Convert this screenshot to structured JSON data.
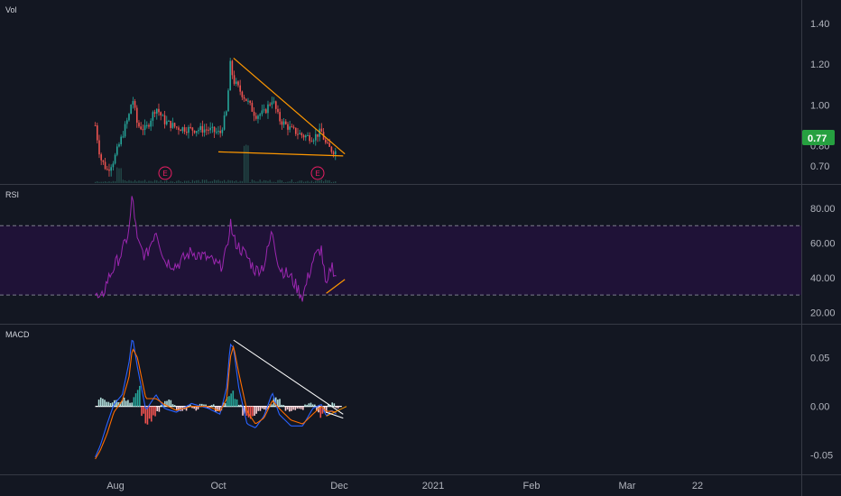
{
  "panes": {
    "price_label": "Vol",
    "rsi_label": "RSI",
    "macd_label": "MACD"
  },
  "last_price": "0.77",
  "earnings_marker": "E",
  "colors": {
    "background": "#131722",
    "separator": "#363a45",
    "candle_up": "#26a69a",
    "candle_down": "#ef5350",
    "trendline": "#ff9800",
    "rsi_line": "#9c27b0",
    "rsi_band": "#1f1237",
    "rsi_band_edge": "#a7a9b7",
    "macd_line": "#2962ff",
    "signal_line": "#ff6d00",
    "hist_pos": "#b2dfdb",
    "hist_pos_strong": "#26a69a",
    "hist_neg": "#ffcdd2",
    "hist_neg_strong": "#ef5350",
    "white_trend": "#ffffff",
    "last_price_bg": "#26a040",
    "earnings": "#e91e63"
  },
  "time_axis": {
    "labels": [
      "Aug",
      "Oct",
      "Dec",
      "2021",
      "Feb",
      "Mar",
      "22"
    ]
  },
  "chart_data": [
    {
      "type": "line",
      "pane": "price",
      "y_ticks": [
        "0.70",
        "0.80",
        "1.00",
        "1.20",
        "1.40"
      ],
      "ylim": [
        0.63,
        1.48
      ],
      "price_path": [
        [
          "Jul 20",
          0.9
        ],
        [
          "Jul 23",
          0.74
        ],
        [
          "Jul 27",
          0.68
        ],
        [
          "Jul 31",
          0.73
        ],
        [
          "Aug 5",
          0.85
        ],
        [
          "Aug 9",
          0.95
        ],
        [
          "Aug 11",
          1.04
        ],
        [
          "Aug 14",
          0.9
        ],
        [
          "Aug 19",
          0.88
        ],
        [
          "Aug 25",
          0.99
        ],
        [
          "Aug 30",
          0.92
        ],
        [
          "Sep 6",
          0.89
        ],
        [
          "Sep 15",
          0.88
        ],
        [
          "Sep 25",
          0.88
        ],
        [
          "Oct 2",
          0.86
        ],
        [
          "Oct 6",
          0.97
        ],
        [
          "Oct 8",
          1.2
        ],
        [
          "Oct 10",
          1.12
        ],
        [
          "Oct 13",
          1.08
        ],
        [
          "Oct 18",
          1.02
        ],
        [
          "Oct 23",
          0.95
        ],
        [
          "Oct 28",
          0.96
        ],
        [
          "Nov 2",
          1.03
        ],
        [
          "Nov 6",
          0.93
        ],
        [
          "Nov 13",
          0.88
        ],
        [
          "Nov 20",
          0.85
        ],
        [
          "Nov 26",
          0.84
        ],
        [
          "Dec 1",
          0.87
        ],
        [
          "Dec 4",
          0.8
        ],
        [
          "Dec 7",
          0.78
        ],
        [
          "Dec 10",
          0.77
        ]
      ],
      "trendlines": [
        {
          "from": [
            "Oct 10",
            1.23
          ],
          "to": [
            "Dec 15",
            0.76
          ]
        },
        {
          "from": [
            "Oct 1",
            0.77
          ],
          "to": [
            "Dec 14",
            0.75
          ]
        }
      ]
    },
    {
      "type": "line",
      "pane": "rsi",
      "y_ticks": [
        "20.00",
        "40.00",
        "60.00",
        "80.00"
      ],
      "ylim": [
        15,
        93
      ],
      "band": [
        30,
        70
      ],
      "series": [
        {
          "values": [
            [
              "Jul 20",
              30
            ],
            [
              "Jul 23",
              26
            ],
            [
              "Jul 27",
              38
            ],
            [
              "Jul 31",
              46
            ],
            [
              "Aug 5",
              55
            ],
            [
              "Aug 9",
              67
            ],
            [
              "Aug 11",
              88
            ],
            [
              "Aug 14",
              60
            ],
            [
              "Aug 19",
              52
            ],
            [
              "Aug 25",
              68
            ],
            [
              "Aug 30",
              50
            ],
            [
              "Sep 6",
              47
            ],
            [
              "Sep 15",
              55
            ],
            [
              "Sep 25",
              51
            ],
            [
              "Oct 2",
              46
            ],
            [
              "Oct 6",
              55
            ],
            [
              "Oct 8",
              73
            ],
            [
              "Oct 10",
              62
            ],
            [
              "Oct 13",
              58
            ],
            [
              "Oct 18",
              52
            ],
            [
              "Oct 23",
              44
            ],
            [
              "Oct 28",
              47
            ],
            [
              "Nov 2",
              67
            ],
            [
              "Nov 6",
              46
            ],
            [
              "Nov 13",
              40
            ],
            [
              "Nov 20",
              29
            ],
            [
              "Nov 26",
              50
            ],
            [
              "Dec 1",
              57
            ],
            [
              "Dec 4",
              32
            ],
            [
              "Dec 7",
              48
            ],
            [
              "Dec 10",
              40
            ]
          ]
        }
      ],
      "trendlines": [
        {
          "from": [
            "Dec 4",
            31
          ],
          "to": [
            "Dec 15",
            39
          ]
        }
      ]
    },
    {
      "type": "line",
      "pane": "macd",
      "y_ticks": [
        "-0.05",
        "0.00",
        "0.05"
      ],
      "ylim": [
        -0.066,
        0.082
      ],
      "series": [
        {
          "values": [
            [
              "Jul 20",
              -0.052
            ],
            [
              "Jul 23",
              -0.04
            ],
            [
              "Jul 27",
              -0.018
            ],
            [
              "Jul 31",
              0.002
            ],
            [
              "Aug 5",
              0.012
            ],
            [
              "Aug 9",
              0.045
            ],
            [
              "Aug 11",
              0.072
            ],
            [
              "Aug 14",
              0.04
            ],
            [
              "Aug 19",
              -0.004
            ],
            [
              "Aug 25",
              0.012
            ],
            [
              "Aug 30",
              -0.002
            ],
            [
              "Sep 6",
              -0.006
            ],
            [
              "Sep 15",
              0.003
            ],
            [
              "Sep 25",
              -0.002
            ],
            [
              "Oct 2",
              -0.008
            ],
            [
              "Oct 6",
              0.02
            ],
            [
              "Oct 8",
              0.064
            ],
            [
              "Oct 10",
              0.06
            ],
            [
              "Oct 13",
              0.02
            ],
            [
              "Oct 18",
              -0.018
            ],
            [
              "Oct 23",
              -0.022
            ],
            [
              "Oct 28",
              -0.01
            ],
            [
              "Nov 2",
              0.014
            ],
            [
              "Nov 6",
              -0.008
            ],
            [
              "Nov 13",
              -0.02
            ],
            [
              "Nov 20",
              -0.02
            ],
            [
              "Nov 26",
              -0.002
            ],
            [
              "Dec 1",
              0.002
            ],
            [
              "Dec 4",
              -0.01
            ],
            [
              "Dec 7",
              -0.004
            ],
            [
              "Dec 10",
              -0.008
            ]
          ]
        },
        {
          "values": [
            [
              "Jul 20",
              -0.054
            ],
            [
              "Jul 23",
              -0.045
            ],
            [
              "Jul 27",
              -0.028
            ],
            [
              "Jul 31",
              -0.006
            ],
            [
              "Aug 5",
              0.006
            ],
            [
              "Aug 9",
              0.03
            ],
            [
              "Aug 11",
              0.06
            ],
            [
              "Aug 14",
              0.05
            ],
            [
              "Aug 19",
              0.008
            ],
            [
              "Aug 25",
              0.008
            ],
            [
              "Aug 30",
              0.002
            ],
            [
              "Sep 6",
              -0.004
            ],
            [
              "Sep 15",
              0.0
            ],
            [
              "Sep 25",
              0.0
            ],
            [
              "Oct 2",
              -0.005
            ],
            [
              "Oct 6",
              0.008
            ],
            [
              "Oct 8",
              0.05
            ],
            [
              "Oct 10",
              0.062
            ],
            [
              "Oct 13",
              0.035
            ],
            [
              "Oct 18",
              -0.005
            ],
            [
              "Oct 23",
              -0.018
            ],
            [
              "Oct 28",
              -0.012
            ],
            [
              "Nov 2",
              0.006
            ],
            [
              "Nov 6",
              -0.002
            ],
            [
              "Nov 13",
              -0.014
            ],
            [
              "Nov 20",
              -0.018
            ],
            [
              "Nov 26",
              -0.008
            ],
            [
              "Dec 1",
              0.0
            ],
            [
              "Dec 4",
              -0.005
            ],
            [
              "Dec 7",
              -0.005
            ],
            [
              "Dec 10",
              -0.006
            ]
          ]
        }
      ],
      "histogram": [
        0.008,
        0.008,
        0.006,
        0.004,
        0.006,
        0.004,
        0.008,
        0.006,
        0.004,
        0.012,
        0.02,
        -0.01,
        -0.016,
        -0.014,
        -0.01,
        -0.006,
        0.002,
        0.006,
        0.006,
        0.002,
        -0.004,
        -0.006,
        -0.004,
        0.002,
        -0.002,
        -0.004,
        0.003,
        0.002,
        -0.002,
        0.002,
        -0.006,
        -0.004,
        0.004,
        0.012,
        0.016,
        0.01,
        0.002,
        -0.008,
        -0.012,
        -0.012,
        -0.008,
        -0.004,
        -0.003,
        -0.004,
        0.002,
        0.008,
        0.008,
        0.002,
        -0.004,
        -0.006,
        -0.004,
        -0.002,
        -0.004,
        0.002,
        0.004,
        0.002,
        -0.006,
        -0.01,
        -0.006,
        0.002,
        0.004,
        -0.002
      ],
      "trendlines": [
        {
          "color": "white",
          "from": [
            "Oct 10",
            0.068
          ],
          "to": [
            "Dec 14",
            -0.008
          ]
        },
        {
          "color": "orange",
          "from": [
            "Dec 4",
            -0.01
          ],
          "to": [
            "Dec 16",
            0.0
          ]
        },
        {
          "color": "white",
          "from": [
            "Dec 4",
            -0.006
          ],
          "to": [
            "Dec 14",
            -0.012
          ]
        }
      ]
    }
  ]
}
